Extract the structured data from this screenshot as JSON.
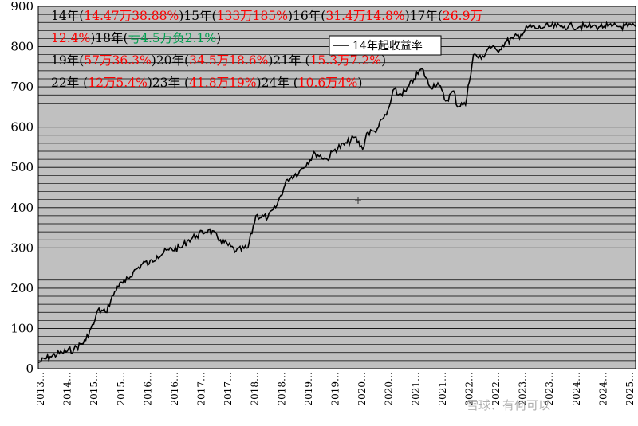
{
  "colors": {
    "plot_bg": "#c0c0c0",
    "grid": "#000000",
    "line": "#000000",
    "gain": "#ff0000",
    "loss": "#00a050"
  },
  "chart_data": {
    "type": "line",
    "title": "",
    "xlabel": "",
    "ylabel": "",
    "ylim": [
      0,
      900
    ],
    "yticks": [
      0,
      100,
      200,
      300,
      400,
      500,
      600,
      700,
      800,
      900
    ],
    "x_tick_labels": [
      "2013…",
      "2014…",
      "2015…",
      "2015…",
      "2016…",
      "2016…",
      "2017…",
      "2017…",
      "2018…",
      "2018…",
      "2019…",
      "2019…",
      "2020…",
      "2020…",
      "2021…",
      "2021…",
      "2022…",
      "2022…",
      "2023…",
      "2023…",
      "2024…",
      "2024…",
      "2025…"
    ],
    "x_range": [
      0,
      151
    ],
    "legend": {
      "label": "14年起收益率",
      "placement": "top-center"
    },
    "series": [
      {
        "name": "14年起收益率",
        "x": [
          0,
          3,
          6,
          9,
          12,
          13,
          14,
          15,
          17,
          20,
          22,
          24,
          27,
          28,
          30,
          33,
          36,
          38,
          40,
          43,
          46,
          50,
          53,
          55,
          58,
          60,
          63,
          66,
          70,
          73,
          75,
          78,
          80,
          82,
          83,
          85,
          86,
          87,
          88,
          89,
          90,
          91,
          93,
          95,
          97,
          99,
          101,
          103,
          105,
          106,
          107,
          108,
          110,
          112,
          114,
          116,
          118,
          120,
          122,
          124,
          126,
          128,
          129,
          131,
          132,
          133,
          134,
          135,
          137,
          138,
          139,
          140,
          141,
          142,
          143,
          144,
          145,
          147,
          149,
          151
        ],
        "values": [
          15,
          30,
          40,
          48,
          70,
          95,
          110,
          145,
          140,
          205,
          215,
          240,
          265,
          260,
          280,
          295,
          300,
          320,
          330,
          345,
          320,
          292,
          300,
          380,
          375,
          400,
          470,
          490,
          535,
          520,
          545,
          560,
          575,
          545,
          585,
          590,
          600,
          620,
          630,
          660,
          695,
          680,
          690,
          720,
          745,
          700,
          710,
          665,
          690,
          650,
          660,
          655,
          780,
          770,
          800,
          790,
          810,
          820,
          830,
          850,
          845,
          848,
          850,
          850,
          850,
          850,
          850,
          850,
          850,
          850,
          850,
          850,
          850,
          850,
          850,
          850,
          850,
          850,
          850,
          850
        ]
      }
    ],
    "annotations": [
      [
        {
          "text": "14年(",
          "color": "black"
        },
        {
          "text": "14.47万38.88%",
          "color": "red"
        },
        {
          "text": ")15年(",
          "color": "black"
        },
        {
          "text": "133万185%",
          "color": "red"
        },
        {
          "text": ")16年(",
          "color": "black"
        },
        {
          "text": "31.4万14.8%",
          "color": "red"
        },
        {
          "text": ")17年(",
          "color": "black"
        },
        {
          "text": "26.9万",
          "color": "red"
        }
      ],
      [
        {
          "text": "12.4%",
          "color": "red"
        },
        {
          "text": ")18年(",
          "color": "black"
        },
        {
          "text": "亏4.5万负2.1%",
          "color": "green"
        },
        {
          "text": ")",
          "color": "black"
        }
      ],
      [
        {
          "text": "19年(",
          "color": "black"
        },
        {
          "text": "57万36.3%",
          "color": "red"
        },
        {
          "text": ")20年(",
          "color": "black"
        },
        {
          "text": "34.5万18.6%",
          "color": "red"
        },
        {
          "text": ")21年 (",
          "color": "black"
        },
        {
          "text": "15.3万7.2%",
          "color": "red"
        },
        {
          "text": ")",
          "color": "black"
        }
      ],
      [
        {
          "text": "22年 (",
          "color": "black"
        },
        {
          "text": "12万5.4%",
          "color": "red"
        },
        {
          "text": ")23年 (",
          "color": "black"
        },
        {
          "text": "41.8万19%",
          "color": "red"
        },
        {
          "text": ")24年 (",
          "color": "black"
        },
        {
          "text": "10.6万4%",
          "color": "red"
        },
        {
          "text": ")",
          "color": "black"
        }
      ]
    ],
    "watermark": "雪球：有何可以"
  }
}
